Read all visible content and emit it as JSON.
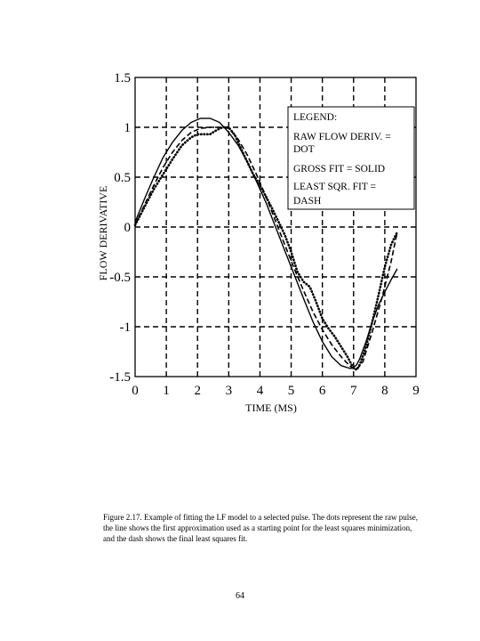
{
  "chart_data": {
    "type": "line",
    "title": "",
    "xlabel": "TIME (MS)",
    "ylabel": "FLOW DERIVATIVE",
    "xlim": [
      0,
      9
    ],
    "ylim": [
      -1.5,
      1.5
    ],
    "x_ticks": [
      "0",
      "1",
      "2",
      "3",
      "4",
      "5",
      "6",
      "7",
      "8",
      "9"
    ],
    "y_ticks": [
      "1.5",
      "1",
      "0.5",
      "0",
      "-0.5",
      "-1",
      "-1.5"
    ],
    "y_tick_values": [
      1.5,
      1,
      0.5,
      0,
      -0.5,
      -1,
      -1.5
    ],
    "grid": true,
    "legend": {
      "placement": "top-right",
      "title": "LEGEND:",
      "lines": [
        "RAW FLOW DERIV. =",
        "DOT",
        "GROSS FIT = SOLID",
        "LEAST SQR. FIT =",
        "DASH"
      ]
    },
    "series": [
      {
        "name": "RAW FLOW DERIV.",
        "style": "dot",
        "x": [
          0,
          0.3,
          0.6,
          0.9,
          1.2,
          1.5,
          1.8,
          2.0,
          2.2,
          2.4,
          2.6,
          2.8,
          3.0,
          3.2,
          3.4,
          3.6,
          3.8,
          4.0,
          4.2,
          4.4,
          4.6,
          4.8,
          5.0,
          5.2,
          5.4,
          5.6,
          5.8,
          6.0,
          6.2,
          6.4,
          6.6,
          6.8,
          7.0,
          7.1,
          7.2,
          7.4,
          7.6,
          7.8,
          8.0,
          8.2,
          8.4
        ],
        "y": [
          0.02,
          0.2,
          0.38,
          0.53,
          0.68,
          0.82,
          0.9,
          0.93,
          0.93,
          0.93,
          0.97,
          1.0,
          1.0,
          0.92,
          0.78,
          0.65,
          0.52,
          0.42,
          0.3,
          0.18,
          0.05,
          -0.08,
          -0.25,
          -0.45,
          -0.55,
          -0.6,
          -0.75,
          -0.92,
          -1.02,
          -1.1,
          -1.2,
          -1.3,
          -1.42,
          -1.43,
          -1.38,
          -1.2,
          -0.95,
          -0.68,
          -0.4,
          -0.18,
          -0.05
        ]
      },
      {
        "name": "GROSS FIT",
        "style": "solid",
        "x": [
          0,
          0.3,
          0.6,
          0.9,
          1.2,
          1.5,
          1.8,
          2.1,
          2.4,
          2.7,
          3.0,
          3.3,
          3.6,
          3.9,
          4.2,
          4.5,
          4.8,
          5.1,
          5.4,
          5.7,
          6.0,
          6.3,
          6.6,
          6.9,
          7.0,
          7.1,
          7.2,
          7.4,
          7.6,
          7.8,
          8.0,
          8.2,
          8.4
        ],
        "y": [
          0.05,
          0.28,
          0.5,
          0.7,
          0.85,
          0.97,
          1.05,
          1.09,
          1.09,
          1.05,
          0.95,
          0.82,
          0.65,
          0.45,
          0.24,
          0.0,
          -0.24,
          -0.48,
          -0.72,
          -0.95,
          -1.15,
          -1.3,
          -1.39,
          -1.42,
          -1.41,
          -1.38,
          -1.32,
          -1.15,
          -0.95,
          -0.78,
          -0.65,
          -0.53,
          -0.42
        ]
      },
      {
        "name": "LEAST SQR. FIT",
        "style": "dash",
        "x": [
          0,
          0.3,
          0.6,
          0.9,
          1.2,
          1.5,
          1.8,
          2.1,
          2.4,
          2.7,
          3.0,
          3.3,
          3.6,
          3.9,
          4.2,
          4.5,
          4.8,
          5.1,
          5.4,
          5.7,
          6.0,
          6.3,
          6.6,
          6.9,
          7.1,
          7.3,
          7.6,
          7.9,
          8.2,
          8.4
        ],
        "y": [
          0.02,
          0.22,
          0.42,
          0.6,
          0.75,
          0.87,
          0.95,
          0.99,
          1.0,
          1.0,
          0.99,
          0.88,
          0.72,
          0.52,
          0.3,
          0.06,
          -0.18,
          -0.42,
          -0.64,
          -0.85,
          -1.03,
          -1.18,
          -1.3,
          -1.4,
          -1.43,
          -1.35,
          -1.05,
          -0.72,
          -0.35,
          -0.05
        ]
      }
    ]
  },
  "caption": "Figure 2.17.  Example of fitting the LF model to a selected pulse.  The dots represent the raw pulse, the line shows the first approximation used as a starting point for the least squares minimization, and the dash shows the final least squares fit.",
  "page_number": "64"
}
